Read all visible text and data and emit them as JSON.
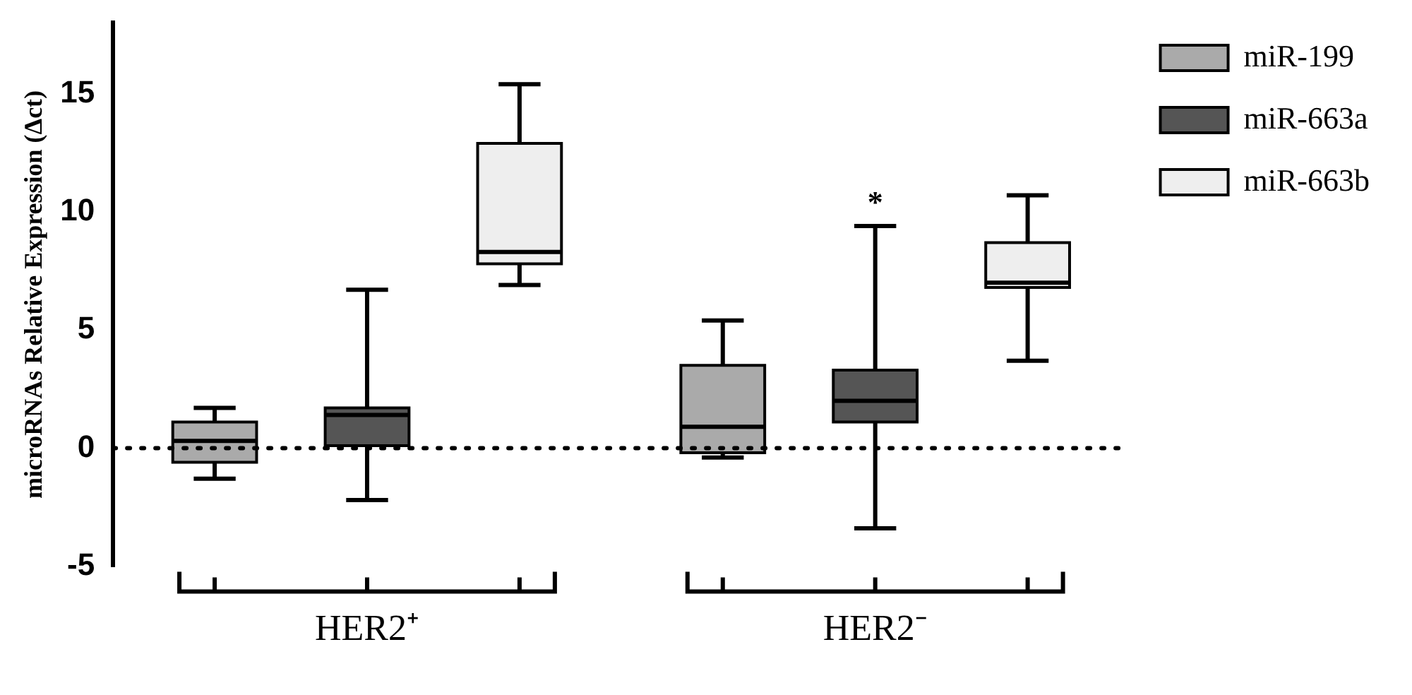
{
  "chart_data": {
    "type": "box",
    "ylabel": "microRNAs Relative Expression (Δct)",
    "categories": [
      "HER2⁺",
      "HER2⁻"
    ],
    "series": [
      {
        "name": "miR-199",
        "color": "#aaaaaa",
        "boxes": [
          {
            "low": -1.3,
            "q1": -0.6,
            "median": 0.3,
            "q3": 1.1,
            "high": 1.7
          },
          {
            "low": -0.4,
            "q1": -0.2,
            "median": 0.9,
            "q3": 3.5,
            "high": 5.4
          }
        ]
      },
      {
        "name": "miR-663a",
        "color": "#555555",
        "boxes": [
          {
            "low": -2.2,
            "q1": 0.1,
            "median": 1.4,
            "q3": 1.7,
            "high": 6.7
          },
          {
            "low": -3.4,
            "q1": 1.1,
            "median": 2.0,
            "q3": 3.3,
            "high": 9.4
          }
        ]
      },
      {
        "name": "miR-663b",
        "color": "#eeeeee",
        "boxes": [
          {
            "low": 6.9,
            "q1": 7.8,
            "median": 8.3,
            "q3": 12.9,
            "high": 15.4
          },
          {
            "low": 3.7,
            "q1": 6.8,
            "median": 7.0,
            "q3": 8.7,
            "high": 10.7
          }
        ]
      }
    ],
    "ylim": [
      -5,
      18
    ],
    "yticks": [
      -5,
      0,
      5,
      10,
      15
    ],
    "grid": false,
    "legend": "top right",
    "ref_lines": [
      {
        "axis": "y",
        "value": 0,
        "line_style": "dotted"
      }
    ],
    "annotations": [
      {
        "text": "*",
        "x": "HER2⁻",
        "y": 9.4
      }
    ]
  }
}
